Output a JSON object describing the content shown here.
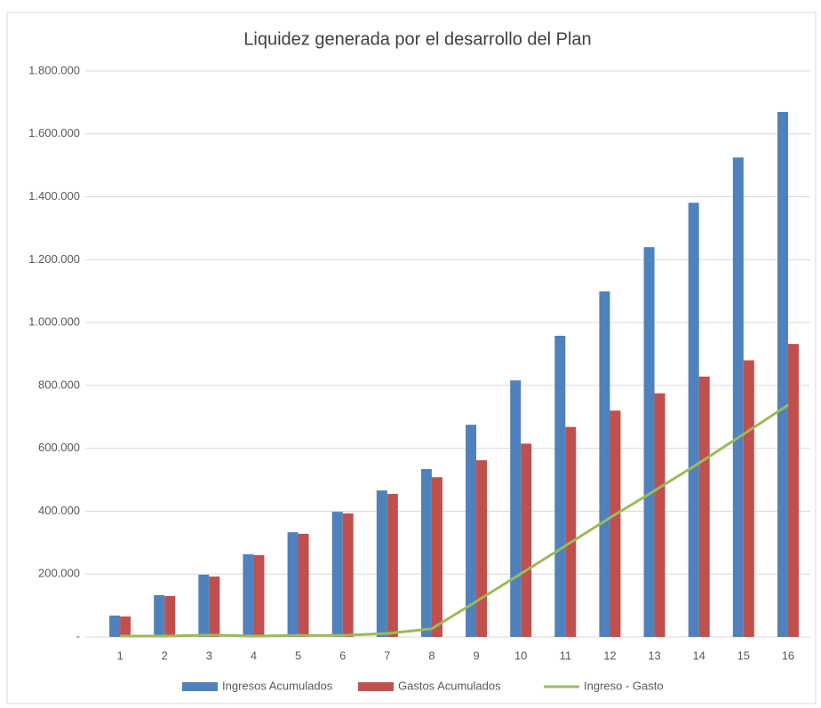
{
  "chart_data": {
    "type": "bar",
    "title": "Liquidez generada por el desarrollo del Plan",
    "categories": [
      "1",
      "2",
      "3",
      "4",
      "5",
      "6",
      "7",
      "8",
      "9",
      "10",
      "11",
      "12",
      "13",
      "14",
      "15",
      "16"
    ],
    "series": [
      {
        "name": "Ingresos Acumulados",
        "color": "#4f81bd",
        "type": "bar",
        "values": [
          68000,
          133000,
          198000,
          263000,
          333000,
          398000,
          466000,
          534000,
          675000,
          816000,
          958000,
          1099000,
          1240000,
          1381000,
          1525000,
          1670000
        ]
      },
      {
        "name": "Gastos Acumulados",
        "color": "#c0504d",
        "type": "bar",
        "values": [
          65000,
          130000,
          192000,
          260000,
          328000,
          393000,
          455000,
          508000,
          562000,
          615000,
          668000,
          720000,
          775000,
          828000,
          880000,
          932000
        ]
      },
      {
        "name": "Ingreso - Gasto",
        "color": "#9bbb59",
        "type": "line",
        "values": [
          3000,
          3000,
          6000,
          3000,
          5000,
          5000,
          11000,
          26000,
          113000,
          201000,
          290000,
          379000,
          465000,
          553000,
          645000,
          738000
        ]
      }
    ],
    "ylim": [
      0,
      1800000
    ],
    "yticks": [
      {
        "value": 0,
        "label": "-"
      },
      {
        "value": 200000,
        "label": "200.000"
      },
      {
        "value": 400000,
        "label": "400.000"
      },
      {
        "value": 600000,
        "label": "600.000"
      },
      {
        "value": 800000,
        "label": "800.000"
      },
      {
        "value": 1000000,
        "label": "1.000.000"
      },
      {
        "value": 1200000,
        "label": "1.200.000"
      },
      {
        "value": 1400000,
        "label": "1.400.000"
      },
      {
        "value": 1600000,
        "label": "1.600.000"
      },
      {
        "value": 1800000,
        "label": "1.800.000"
      }
    ],
    "grid": true,
    "legend": "bottom"
  }
}
